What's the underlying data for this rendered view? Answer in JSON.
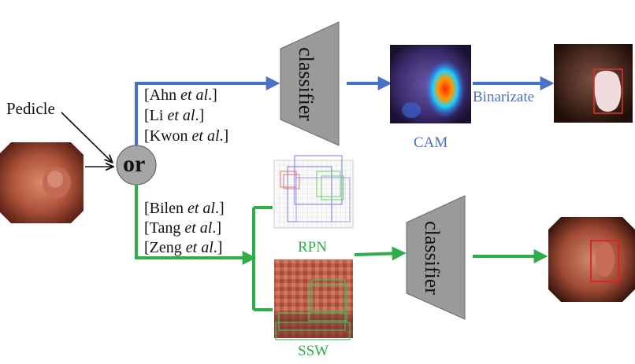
{
  "labels": {
    "pedicle": "Pedicle",
    "or": "or",
    "classifier_top": "classifier",
    "classifier_bottom": "classifier",
    "binarizate": "Binarizate",
    "cam": "CAM",
    "rpn": "RPN",
    "ssw": "SSW"
  },
  "refs_top": [
    {
      "name": "[Ahn",
      "etal": "et al",
      "end": ".]"
    },
    {
      "name": "[Li",
      "etal": "et al",
      "end": ".]"
    },
    {
      "name": "[Kwon",
      "etal": "et al",
      "end": ".]"
    }
  ],
  "refs_bottom": [
    {
      "name": "[Bilen",
      "etal": "et al",
      "end": ".]"
    },
    {
      "name": "[Tang",
      "etal": "et al",
      "end": ".]"
    },
    {
      "name": "[Zeng",
      "etal": "et al",
      "end": ".]"
    }
  ],
  "colors": {
    "blue": "#4a72c4",
    "green": "#2eae4a",
    "classifier_fill": "#9a9a9a",
    "or_fill": "#a6a6a6"
  }
}
